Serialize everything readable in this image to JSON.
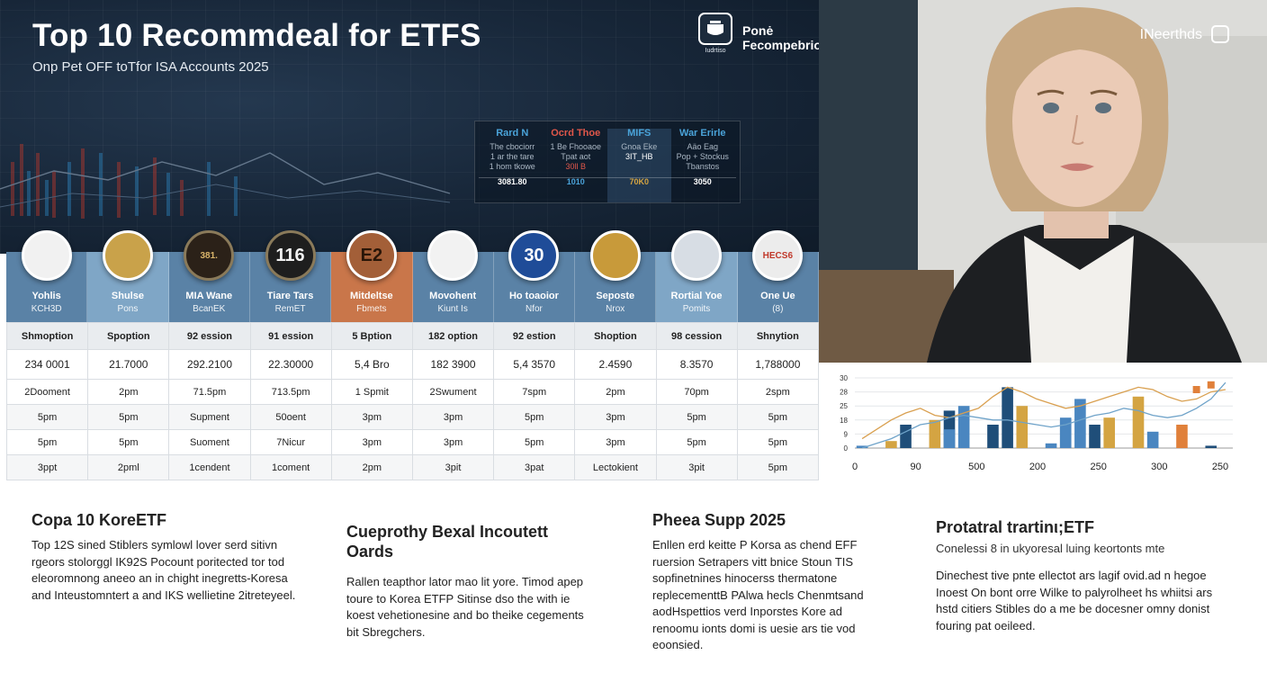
{
  "header": {
    "title": "Top 10 Recommdeal for ETFS",
    "subtitle": "Onp Pet OFF toTfor ISA Accounts 2025",
    "logo_text": "Ponė Fecompebriow",
    "logo_caption": "Iudrtiso",
    "brand": "INeerthds"
  },
  "mini_table": {
    "columns": [
      {
        "head": "Rard N",
        "head_color": "#4aa3d9",
        "lines": [
          "The cbociorr",
          "1 ar the tare",
          "1 hom tkowe"
        ],
        "value": "3081.80"
      },
      {
        "head": "Ocrd Thoe",
        "head_color": "#e0574a",
        "lines": [
          "1 Be Fhooaoe",
          "Tpat aot",
          "30ll B"
        ],
        "value": "1010"
      },
      {
        "head": "MIFS",
        "head_color": "#4aa3d9",
        "lines": [
          "Gnoa Eke",
          "3IT_HB"
        ],
        "value": "70K0"
      },
      {
        "head": "War Erirle",
        "head_color": "#4aa3d9",
        "lines": [
          "Aäo Eag",
          "Pop + Stockus",
          "Tbanstos"
        ],
        "value": "3050"
      }
    ]
  },
  "funds": [
    {
      "name": "Yohlis",
      "code": "KCH3D",
      "band_color": "#5a82a6",
      "coin_label": "",
      "coin_bg": "#f1f1f1",
      "coin_fg": "#c0392b"
    },
    {
      "name": "Shulse",
      "code": "Pons",
      "band_color": "#7fa6c6",
      "coin_label": "",
      "coin_bg": "#c9a24a",
      "coin_fg": "#5a3f12"
    },
    {
      "name": "MIA Wane",
      "code": "BcanEK",
      "band_color": "#5a82a6",
      "coin_label": "381.",
      "coin_bg": "#2b2118",
      "coin_fg": "#d9b46a"
    },
    {
      "name": "Tiare Tars",
      "code": "RemET",
      "band_color": "#5a82a6",
      "coin_label": "116",
      "coin_bg": "#1e1e1e",
      "coin_fg": "#f0f0f0"
    },
    {
      "name": "Mitdeltse",
      "code": "Fbmets",
      "band_color": "#c9764a",
      "coin_label": "E2",
      "coin_bg": "#a35f38",
      "coin_fg": "#2a1608"
    },
    {
      "name": "Movohent",
      "code": "Kiunt Is",
      "band_color": "#5a82a6",
      "coin_label": "",
      "coin_bg": "#f2f2f2",
      "coin_fg": "#c0392b"
    },
    {
      "name": "Ho toaoior",
      "code": "Nfor",
      "band_color": "#5a82a6",
      "coin_label": "30",
      "coin_bg": "#1f4c98",
      "coin_fg": "#ffffff"
    },
    {
      "name": "Seposte",
      "code": "Nrox",
      "band_color": "#5a82a6",
      "coin_label": "",
      "coin_bg": "#c89a3a",
      "coin_fg": "#4a3208"
    },
    {
      "name": "Rortial Yoe",
      "code": "Pomits",
      "band_color": "#7fa6c6",
      "coin_label": "",
      "coin_bg": "#d7dde4",
      "coin_fg": "#586a7c"
    },
    {
      "name": "One Ue",
      "code": "(8)",
      "band_color": "#5a82a6",
      "coin_label": "HECS6",
      "coin_bg": "#ececec",
      "coin_fg": "#c0392b"
    }
  ],
  "table": {
    "rows": [
      [
        "Shmoption",
        "Spoption",
        "92 ession",
        "91 ession",
        "5 Bption",
        "182 option",
        "92 estion",
        "Shoption",
        "98 cession",
        "Shnytion"
      ],
      [
        "234 0001",
        "21.7000",
        "292.2100",
        "22.30000",
        "5,4 Bro",
        "182 3900",
        "5,4 3570",
        "2.4590",
        "8.3570",
        "1,788000"
      ],
      [
        "2Dooment",
        "2pm",
        "71.5pm",
        "713.5pm",
        "1 Spmit",
        "2Swument",
        "7spm",
        "2pm",
        "70pm",
        "2spm"
      ],
      [
        "5pm",
        "5pm",
        "Supment",
        "50oent",
        "3pm",
        "3pm",
        "5pm",
        "3pm",
        "5pm",
        "5pm"
      ],
      [
        "5pm",
        "5pm",
        "Suoment",
        "7Nicur",
        "3pm",
        "3pm",
        "5pm",
        "3pm",
        "5pm",
        "5pm"
      ],
      [
        "3ppt",
        "2pml",
        "1cendent",
        "1coment",
        "2pm",
        "3pit",
        "3pat",
        "Lectokient",
        "3pit",
        "5pm"
      ]
    ]
  },
  "chart_data": {
    "type": "bar",
    "y_tick_labels": [
      "30",
      "28",
      "25",
      "18",
      "9",
      "0"
    ],
    "x_tick_labels": [
      "0",
      "90",
      "500",
      "200",
      "250",
      "300",
      "250"
    ],
    "x": [
      1,
      2,
      3,
      4,
      5,
      6,
      7,
      8,
      9,
      10,
      11,
      12,
      13,
      14,
      15,
      16,
      17,
      18,
      19,
      20,
      21,
      22,
      23,
      24,
      25,
      26
    ],
    "series": [
      {
        "color": "#1f4e79",
        "values": [
          0,
          0,
          0,
          10,
          0,
          0,
          16,
          0,
          0,
          10,
          26,
          0,
          0,
          0,
          12,
          0,
          10,
          0,
          0,
          0,
          0,
          0,
          0,
          0,
          1,
          0
        ]
      },
      {
        "color": "#d4a442",
        "values": [
          0,
          0,
          3,
          0,
          0,
          12,
          0,
          0,
          0,
          0,
          0,
          18,
          0,
          0,
          0,
          0,
          0,
          13,
          0,
          22,
          0,
          0,
          0,
          0,
          0,
          0
        ]
      },
      {
        "color": "#4a86c0",
        "values": [
          1,
          0,
          0,
          0,
          0,
          0,
          8,
          18,
          0,
          0,
          0,
          0,
          0,
          2,
          13,
          21,
          0,
          0,
          0,
          0,
          7,
          0,
          0,
          0,
          0,
          0
        ]
      },
      {
        "color": "#e0803a",
        "values": [
          0,
          0,
          0,
          0,
          0,
          0,
          0,
          0,
          0,
          0,
          0,
          0,
          0,
          0,
          0,
          0,
          0,
          0,
          0,
          0,
          0,
          0,
          10,
          0,
          0,
          0
        ]
      }
    ],
    "lines": [
      {
        "color": "#d9a050",
        "values": [
          4,
          8,
          12,
          15,
          17,
          14,
          13,
          15,
          17,
          22,
          26,
          24,
          21,
          19,
          17,
          18,
          20,
          22,
          24,
          26,
          25,
          22,
          20,
          21,
          24,
          25
        ]
      },
      {
        "color": "#6fa3c9",
        "values": [
          0,
          2,
          4,
          7,
          10,
          11,
          13,
          14,
          13,
          12,
          12,
          11,
          10,
          9,
          10,
          12,
          14,
          15,
          17,
          16,
          14,
          13,
          14,
          17,
          21,
          28
        ]
      }
    ],
    "markers": [
      {
        "x": 24,
        "y": 25,
        "color": "#e0803a"
      },
      {
        "x": 25,
        "y": 27,
        "color": "#e0803a"
      }
    ],
    "ylim": [
      0,
      30
    ]
  },
  "articles": [
    {
      "heading": "Copa 10 KoreETF",
      "body": "Top 12S sined Stiblers symlowl lover serd sitivn rgeors stolorggl IK92S Pocount poritected tor tod eleoromnong aneeo an in chight inegretts-Koresa and Inteustomntert a and IKS wellietine 2itreteyeel.",
      "body2": "",
      "sub": ""
    },
    {
      "heading": "Cueprothy Bexal Incoutett Oards",
      "body": "Rallen teapthor lator mao lit yore. Timod apep toure to Korea ETFP Sitinse dso the with ie koest vehetionesine and bo theike cegements bit Sbregchers.",
      "body2": "",
      "sub": ""
    },
    {
      "heading": "Pheea Supp 2025",
      "body": "Enllen erd keitte P Korsa as chend EFF ruersion Setrapers vitt bnice Stoun TIS sopfinetnines hinocerss thermatone replecementtB PAlwa hecls Chenmtsand aodHspettios verd Inporstes Kore ad renoomu ionts domi is uesie ars tie vod eoonsied.",
      "body2": "",
      "sub": ""
    },
    {
      "heading": "Protatral trartinι;ETF",
      "sub": "Conelessi 8 in ukyoresal luing keortonts mte",
      "body": "",
      "body2": "Dinechest tive pnte ellectot ars lagif ovid.ad n hegoe Inoest On bont orre Wilke to palyrolheet hs whiitsi ars hstd citiers Stibles do a me be docesner omny donist fouring pat oeileed."
    }
  ]
}
